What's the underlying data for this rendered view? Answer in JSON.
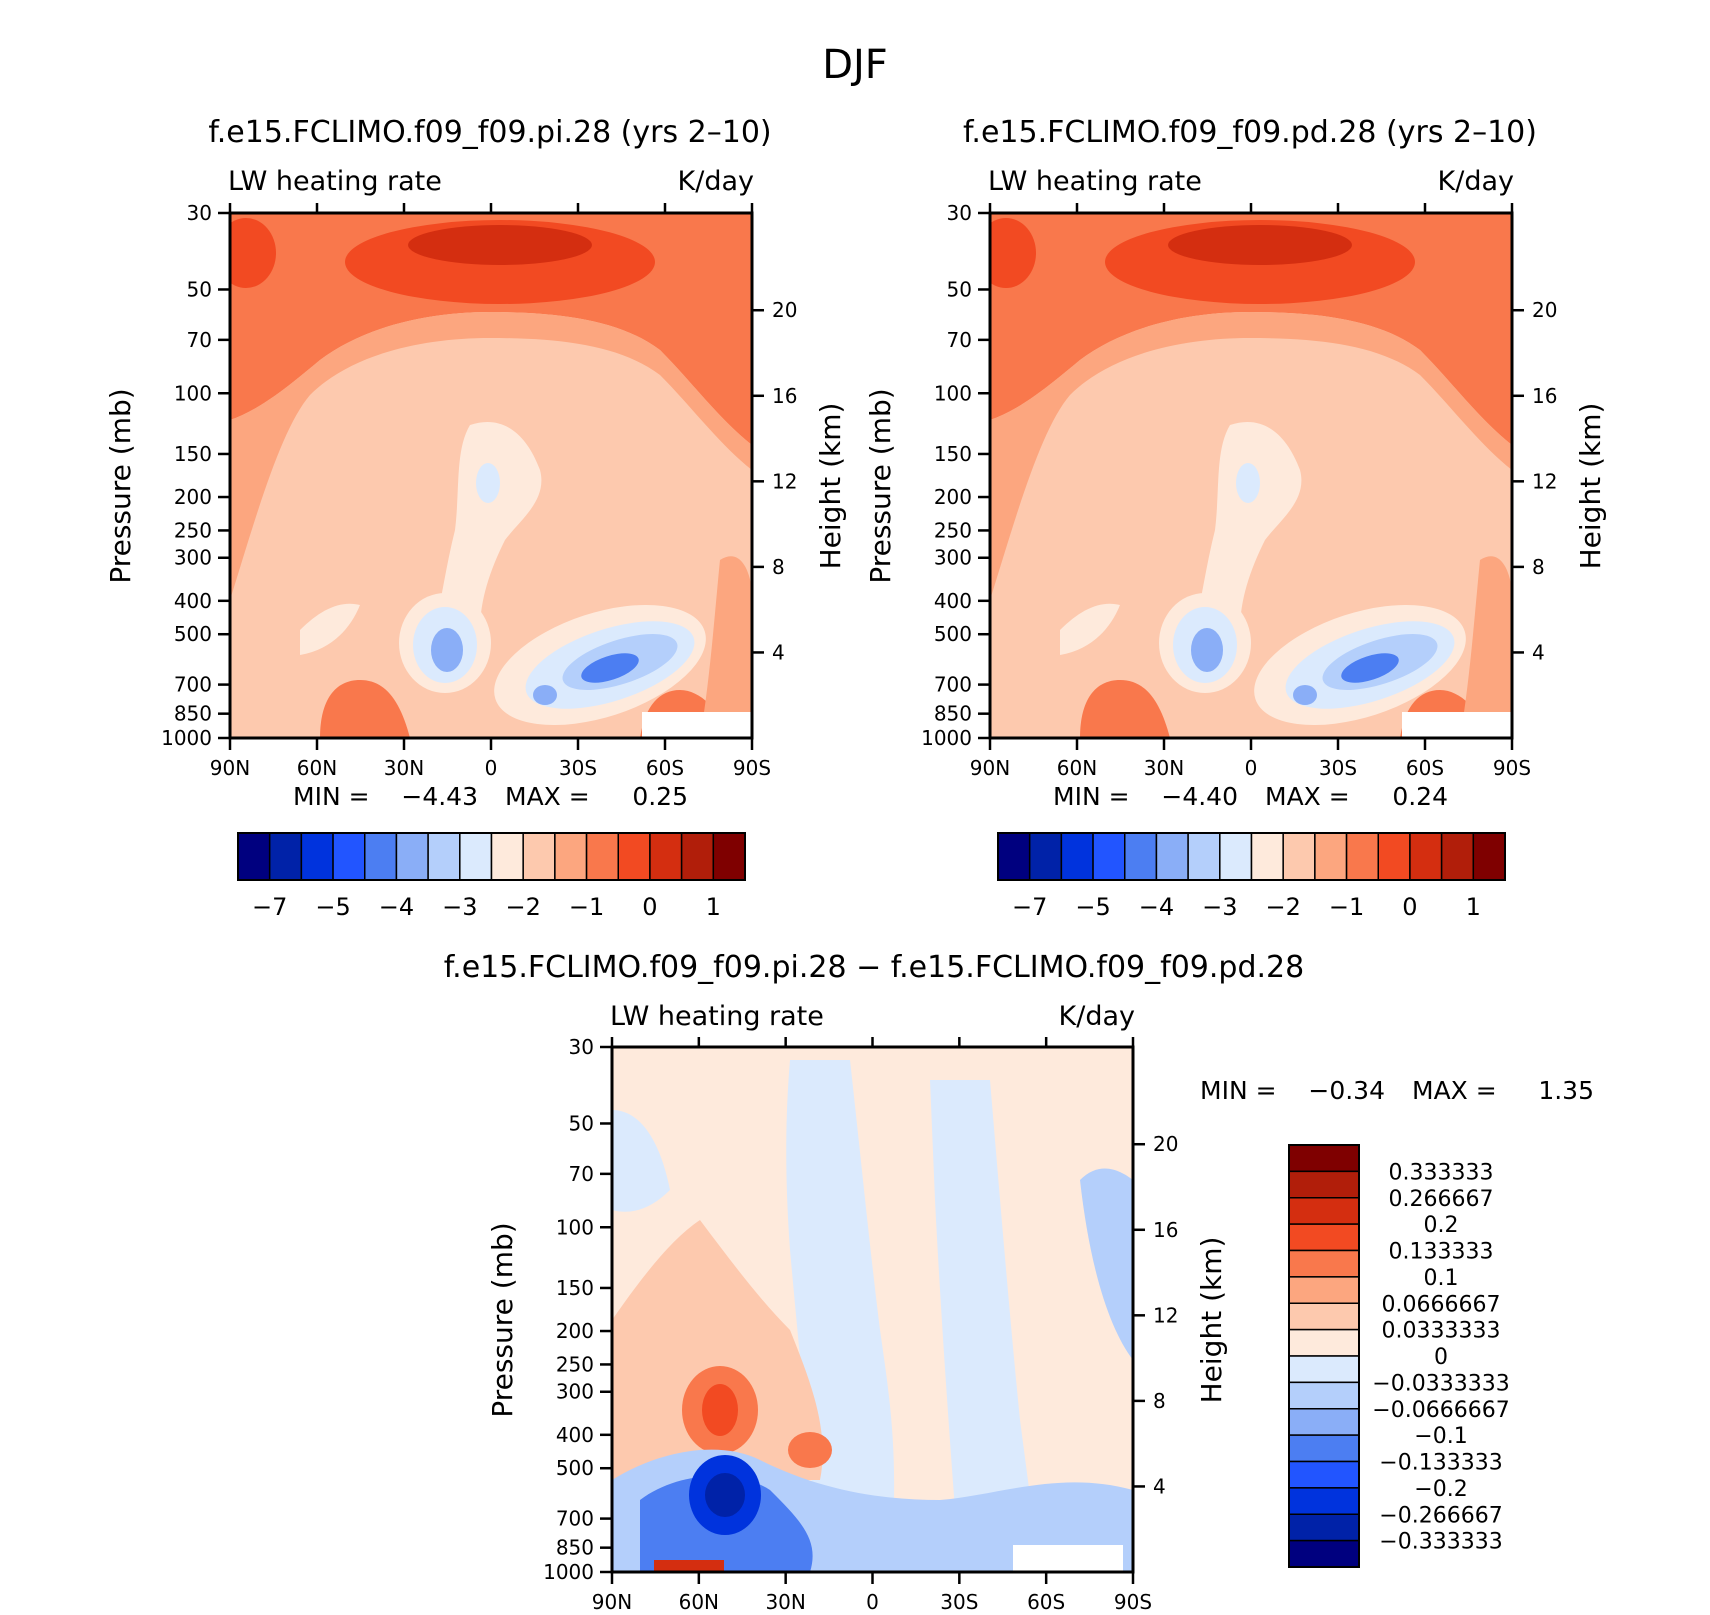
{
  "figure": {
    "title": "DJF"
  },
  "palettes": {
    "main": [
      "#00007f",
      "#0022a8",
      "#0033dd",
      "#2255ff",
      "#4c7ef2",
      "#8aaef7",
      "#b4cffb",
      "#dbeafd",
      "#feeadc",
      "#fdc9ae",
      "#fca67f",
      "#f9784c",
      "#f24a22",
      "#d42e10",
      "#b11e0a",
      "#7f0000"
    ],
    "diff": [
      "#7f0000",
      "#b11e0a",
      "#d42e10",
      "#f24a22",
      "#f9784c",
      "#fca67f",
      "#fdc9ae",
      "#feeadc",
      "#dbeafd",
      "#b4cffb",
      "#8aaef7",
      "#4c7ef2",
      "#2255ff",
      "#0033dd",
      "#0022a8",
      "#00007f"
    ]
  },
  "chart_data": [
    {
      "type": "heatmap",
      "id": "pi",
      "title": "f.e15.FCLIMO.f09_f09.pi.28 (yrs 2–10)",
      "left_label": "LW heating rate",
      "right_label": "K/day",
      "xlabel": "",
      "ylabel": "Pressure (mb)",
      "ylabel_right": "Height (km)",
      "x_ticks": [
        "90N",
        "60N",
        "30N",
        "0",
        "30S",
        "60S",
        "90S"
      ],
      "x_range": [
        90,
        -90
      ],
      "y_ticks": [
        30,
        50,
        70,
        100,
        150,
        200,
        250,
        300,
        400,
        500,
        700,
        850,
        1000
      ],
      "y_range": [
        30,
        1000
      ],
      "y_scale": "log",
      "height_ticks": [
        4,
        8,
        12,
        16,
        20
      ],
      "stats": {
        "min_label": "MIN =",
        "min": "−4.43",
        "max_label": "MAX =",
        "max": "0.25"
      },
      "colorbar": {
        "orientation": "horizontal",
        "tick_labels": [
          "−7",
          "−5",
          "−4",
          "−3",
          "−2",
          "−1",
          "0",
          "1"
        ]
      }
    },
    {
      "type": "heatmap",
      "id": "pd",
      "title": "f.e15.FCLIMO.f09_f09.pd.28 (yrs 2–10)",
      "left_label": "LW heating rate",
      "right_label": "K/day",
      "xlabel": "",
      "ylabel": "Pressure (mb)",
      "ylabel_right": "Height (km)",
      "x_ticks": [
        "90N",
        "60N",
        "30N",
        "0",
        "30S",
        "60S",
        "90S"
      ],
      "x_range": [
        90,
        -90
      ],
      "y_ticks": [
        30,
        50,
        70,
        100,
        150,
        200,
        250,
        300,
        400,
        500,
        700,
        850,
        1000
      ],
      "y_range": [
        30,
        1000
      ],
      "y_scale": "log",
      "height_ticks": [
        4,
        8,
        12,
        16,
        20
      ],
      "stats": {
        "min_label": "MIN =",
        "min": "−4.40",
        "max_label": "MAX =",
        "max": "0.24"
      },
      "colorbar": {
        "orientation": "horizontal",
        "tick_labels": [
          "−7",
          "−5",
          "−4",
          "−3",
          "−2",
          "−1",
          "0",
          "1"
        ]
      }
    },
    {
      "type": "heatmap",
      "id": "diff",
      "title": "f.e15.FCLIMO.f09_f09.pi.28 − f.e15.FCLIMO.f09_f09.pd.28",
      "left_label": "LW heating rate",
      "right_label": "K/day",
      "xlabel": "",
      "ylabel": "Pressure (mb)",
      "ylabel_right": "Height (km)",
      "x_ticks": [
        "90N",
        "60N",
        "30N",
        "0",
        "30S",
        "60S",
        "90S"
      ],
      "x_range": [
        90,
        -90
      ],
      "y_ticks": [
        30,
        50,
        70,
        100,
        150,
        200,
        250,
        300,
        400,
        500,
        700,
        850,
        1000
      ],
      "y_range": [
        30,
        1000
      ],
      "y_scale": "log",
      "height_ticks": [
        4,
        8,
        12,
        16,
        20
      ],
      "stats": {
        "min_label": "MIN =",
        "min": "−0.34",
        "max_label": "MAX =",
        "max": "1.35"
      },
      "colorbar": {
        "orientation": "vertical",
        "tick_labels": [
          "0.333333",
          "0.266667",
          "0.2",
          "0.133333",
          "0.1",
          "0.0666667",
          "0.0333333",
          "0",
          "−0.0333333",
          "−0.0666667",
          "−0.1",
          "−0.133333",
          "−0.2",
          "−0.266667",
          "−0.333333"
        ]
      }
    }
  ]
}
